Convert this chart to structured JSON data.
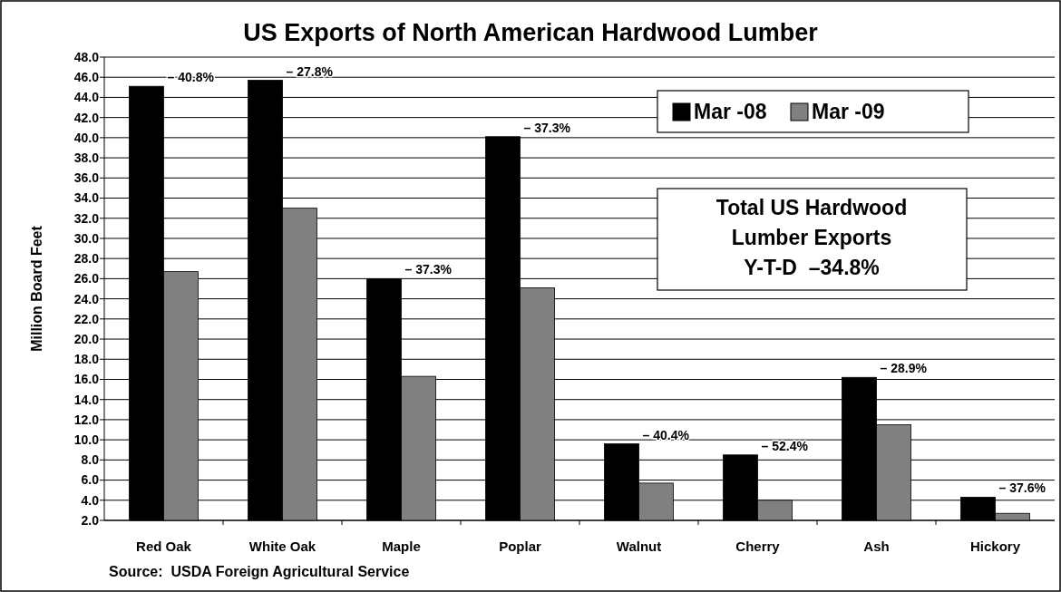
{
  "chart_data": {
    "type": "bar",
    "title": "US Exports of North American Hardwood Lumber",
    "ylabel": "Million Board Feet",
    "categories": [
      "Red Oak",
      "White Oak",
      "Maple",
      "Poplar",
      "Walnut",
      "Cherry",
      "Ash",
      "Hickory"
    ],
    "series": [
      {
        "name": "Mar -08",
        "color": "#000000",
        "values": [
          45.1,
          45.7,
          26.0,
          40.1,
          9.6,
          8.5,
          16.2,
          4.3
        ]
      },
      {
        "name": "Mar -09",
        "color": "#808080",
        "values": [
          26.7,
          33.0,
          16.3,
          25.1,
          5.7,
          4.0,
          11.5,
          2.7
        ]
      }
    ],
    "ylim": [
      2,
      48
    ],
    "yticks": [
      {
        "value": 2,
        "label": "2.0"
      },
      {
        "value": 4,
        "label": "4.0"
      },
      {
        "value": 6,
        "label": "6.0"
      },
      {
        "value": 8,
        "label": "8.0"
      },
      {
        "value": 10,
        "label": "10.0"
      },
      {
        "value": 12,
        "label": "12.0"
      },
      {
        "value": 14,
        "label": "14.0"
      },
      {
        "value": 16,
        "label": "16.0"
      },
      {
        "value": 18,
        "label": "18.0"
      },
      {
        "value": 20,
        "label": "20.0"
      },
      {
        "value": 22,
        "label": "22.0"
      },
      {
        "value": 24,
        "label": "24.0"
      },
      {
        "value": 26,
        "label": "26.0"
      },
      {
        "value": 28,
        "label": "28.0"
      },
      {
        "value": 30,
        "label": "30.0"
      },
      {
        "value": 32,
        "label": "32.0"
      },
      {
        "value": 34,
        "label": "34.0"
      },
      {
        "value": 36,
        "label": "36.0"
      },
      {
        "value": 38,
        "label": "38.0"
      },
      {
        "value": 40,
        "label": "40.0"
      },
      {
        "value": 42,
        "label": "42.0"
      },
      {
        "value": 44,
        "label": "44.0"
      },
      {
        "value": 46,
        "label": "46.0"
      },
      {
        "value": 48,
        "label": "48.0"
      }
    ],
    "grid": "y",
    "legend": "top right",
    "annotations": [
      {
        "text": "– 40.8%",
        "x": "Red Oak",
        "y": 45.1
      },
      {
        "text": "– 27.8%",
        "x": "White Oak",
        "y": 45.7
      },
      {
        "text": "– 37.3%",
        "x": "Maple",
        "y": 26.0
      },
      {
        "text": "– 37.3%",
        "x": "Poplar",
        "y": 40.1
      },
      {
        "text": "– 40.4%",
        "x": "Walnut",
        "y": 9.6
      },
      {
        "text": "– 52.4%",
        "x": "Cherry",
        "y": 8.5
      },
      {
        "text": "– 28.9%",
        "x": "Ash",
        "y": 16.2
      },
      {
        "text": "– 37.6%",
        "x": "Hickory",
        "y": 4.3
      },
      "Total US Hardwood\nLumber Exports\nY-T-D  –34.8%",
      "Source:  USDA Foreign Agricultural Service"
    ]
  }
}
